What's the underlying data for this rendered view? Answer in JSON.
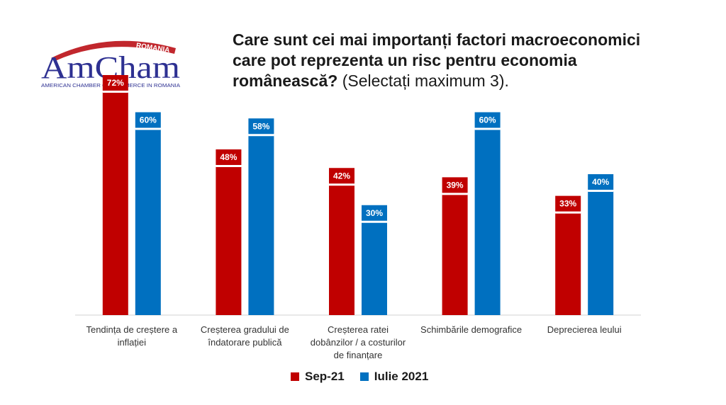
{
  "logo": {
    "country": "ROMANIA",
    "name": "AmCham",
    "full_name": "AMERICAN CHAMBER OF COMMERCE IN ROMANIA",
    "colors": {
      "navy": "#2e3192",
      "red": "#c1272d"
    }
  },
  "title": {
    "line1": "Care sunt cei mai importanți factori macroeconomici",
    "line2": "care pot reprezenta un risc pentru economia",
    "line3_bold": "românească?",
    "line3_note": " (Selectați  maximum 3)."
  },
  "chart_data": {
    "type": "bar",
    "categories": [
      [
        "Tendința de creștere a",
        "inflației"
      ],
      [
        "Creșterea gradului de",
        "îndatorare publică"
      ],
      [
        "Creșterea ratei",
        "dobânzilor / a costurilor",
        "de finanțare"
      ],
      [
        "Schimbările demografice"
      ],
      [
        "Deprecierea leului"
      ]
    ],
    "series": [
      {
        "name": "Sep-21",
        "color": "#c00000",
        "values": [
          72,
          48,
          42,
          39,
          33
        ],
        "labels": [
          "72%",
          "48%",
          "42%",
          "39%",
          "33%"
        ]
      },
      {
        "name": "Iulie 2021",
        "color": "#0070c0",
        "values": [
          60,
          58,
          30,
          60,
          40
        ],
        "labels": [
          "60%",
          "58%",
          "30%",
          "60%",
          "40%"
        ]
      }
    ],
    "ylim": [
      0,
      80
    ],
    "grid": false,
    "legend": "bottom"
  }
}
